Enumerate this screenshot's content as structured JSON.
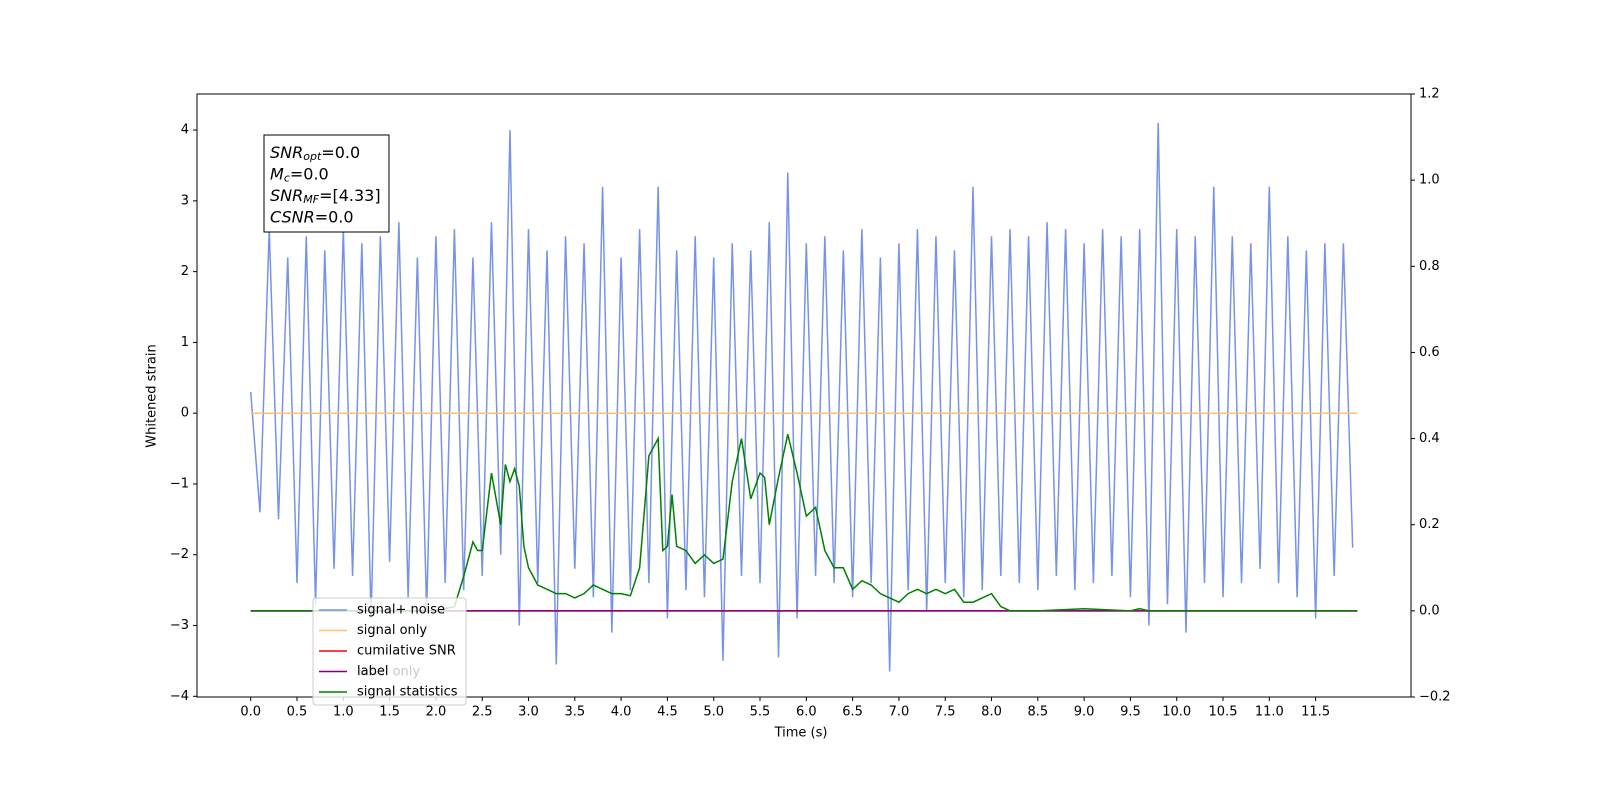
{
  "chart_data": {
    "type": "line",
    "xlabel": "Time (s)",
    "ylabel": "Whitened strain",
    "xlim": [
      -0.58,
      12.53
    ],
    "ylim": [
      -4.01,
      4.51
    ],
    "y2lim": [
      -0.2,
      1.2
    ],
    "xticks": [
      {
        "value": 0,
        "label": "0.0"
      },
      {
        "value": 0.5,
        "label": "0.5"
      },
      {
        "value": 1,
        "label": "1.0"
      },
      {
        "value": 1.5,
        "label": "1.5"
      },
      {
        "value": 2,
        "label": "2.0"
      },
      {
        "value": 2.5,
        "label": "2.5"
      },
      {
        "value": 3,
        "label": "3.0"
      },
      {
        "value": 3.5,
        "label": "3.5"
      },
      {
        "value": 4,
        "label": "4.0"
      },
      {
        "value": 4.5,
        "label": "4.5"
      },
      {
        "value": 5,
        "label": "5.0"
      },
      {
        "value": 5.5,
        "label": "5.5"
      },
      {
        "value": 6,
        "label": "6.0"
      },
      {
        "value": 6.5,
        "label": "6.5"
      },
      {
        "value": 7,
        "label": "7.0"
      },
      {
        "value": 7.5,
        "label": "7.5"
      },
      {
        "value": 8,
        "label": "8.0"
      },
      {
        "value": 8.5,
        "label": "8.5"
      },
      {
        "value": 9,
        "label": "9.0"
      },
      {
        "value": 9.5,
        "label": "9.5"
      },
      {
        "value": 10,
        "label": "10.0"
      },
      {
        "value": 10.5,
        "label": "10.5"
      },
      {
        "value": 11,
        "label": "11.0"
      },
      {
        "value": 11.5,
        "label": "11.5"
      }
    ],
    "yticks": [
      {
        "value": -4,
        "label": "−4"
      },
      {
        "value": -3,
        "label": "−3"
      },
      {
        "value": -2,
        "label": "−2"
      },
      {
        "value": -1,
        "label": "−1"
      },
      0,
      1,
      2,
      3,
      4
    ],
    "y2ticks": [
      {
        "value": -0.2,
        "label": "−0.2"
      },
      {
        "value": 0,
        "label": "0.0"
      },
      {
        "value": 0.2,
        "label": "0.2"
      },
      {
        "value": 0.4,
        "label": "0.4"
      },
      {
        "value": 0.6,
        "label": "0.6"
      },
      {
        "value": 0.8,
        "label": "0.8"
      },
      {
        "value": 1.0,
        "label": "1.0"
      },
      {
        "value": 1.2,
        "label": "1.2"
      }
    ],
    "legend": "lower left",
    "legend_behind_text": "label only",
    "textbox": [
      {
        "base": "SNR",
        "sub": "opt",
        "value": "=0.0"
      },
      {
        "base": "M",
        "sub": "c",
        "value": "=0.0"
      },
      {
        "base": "SNR",
        "sub": "MF",
        "value": "=[4.33]"
      },
      {
        "base": "CSNR",
        "value": "=0.0"
      }
    ],
    "series": [
      {
        "name": "signal+ noise",
        "color": "#7893e6",
        "x": [
          0,
          0.1,
          0.2,
          0.3,
          0.4,
          0.5,
          0.6,
          0.7,
          0.8,
          0.9,
          1,
          1.1,
          1.2,
          1.3,
          1.4,
          1.5,
          1.6,
          1.7,
          1.8,
          1.9,
          2,
          2.1,
          2.2,
          2.3,
          2.4,
          2.5,
          2.6,
          2.7,
          2.8,
          2.9,
          3,
          3.1,
          3.2,
          3.3,
          3.4,
          3.5,
          3.6,
          3.7,
          3.8,
          3.9,
          4,
          4.1,
          4.2,
          4.3,
          4.4,
          4.5,
          4.6,
          4.7,
          4.8,
          4.9,
          5,
          5.1,
          5.2,
          5.3,
          5.4,
          5.5,
          5.6,
          5.7,
          5.8,
          5.9,
          6,
          6.1,
          6.2,
          6.3,
          6.4,
          6.5,
          6.6,
          6.7,
          6.8,
          6.9,
          7,
          7.1,
          7.2,
          7.3,
          7.4,
          7.5,
          7.6,
          7.7,
          7.8,
          7.9,
          8,
          8.1,
          8.2,
          8.3,
          8.4,
          8.5,
          8.6,
          8.7,
          8.8,
          8.9,
          9,
          9.1,
          9.2,
          9.3,
          9.4,
          9.5,
          9.6,
          9.7,
          9.8,
          9.9,
          10,
          10.1,
          10.2,
          10.3,
          10.4,
          10.5,
          10.6,
          10.7,
          10.8,
          10.9,
          11,
          11.1,
          11.2,
          11.3,
          11.4,
          11.5,
          11.6,
          11.7,
          11.8,
          11.9
        ],
        "values": [
          0.3,
          -1.4,
          2.6,
          -1.5,
          2.2,
          -2.4,
          2.5,
          -2.7,
          2.3,
          -2.2,
          2.6,
          -2.3,
          2.4,
          -2.9,
          2.5,
          -2.1,
          2.7,
          -2.6,
          2.2,
          -2.8,
          2.5,
          -2.4,
          2.6,
          -2.5,
          2.2,
          -2.3,
          2.7,
          -2.0,
          4.0,
          -3.0,
          2.6,
          -2.4,
          2.3,
          -3.55,
          2.5,
          -2.2,
          2.4,
          -2.6,
          3.2,
          -3.1,
          2.2,
          -2.5,
          2.6,
          -2.4,
          3.2,
          -2.9,
          2.3,
          -2.5,
          2.5,
          -2.6,
          2.2,
          -3.5,
          2.4,
          -2.3,
          2.3,
          -2.4,
          2.7,
          -3.45,
          3.4,
          -2.9,
          2.4,
          -2.3,
          2.5,
          -2.4,
          2.3,
          -2.6,
          2.6,
          -2.4,
          2.2,
          -3.65,
          2.4,
          -2.5,
          2.6,
          -2.8,
          2.5,
          -2.4,
          2.3,
          -2.6,
          3.2,
          -2.5,
          2.5,
          -2.3,
          2.6,
          -2.4,
          2.5,
          -2.5,
          2.7,
          -2.3,
          2.6,
          -2.5,
          2.4,
          -2.4,
          2.6,
          -2.3,
          2.5,
          -2.6,
          2.6,
          -3.0,
          4.1,
          -2.7,
          2.6,
          -3.1,
          2.5,
          -2.4,
          3.2,
          -2.6,
          2.5,
          -2.4,
          2.4,
          -2.2,
          3.2,
          -2.4,
          2.5,
          -2.6,
          2.3,
          -2.9,
          2.4,
          -2.3,
          2.4,
          -1.9
        ]
      },
      {
        "name": "signal only",
        "color": "#ffc070",
        "x": [
          0,
          11.95
        ],
        "values": [
          0,
          0
        ]
      },
      {
        "name": "cumilative SNR",
        "color": "#ff0000",
        "axis": "y2",
        "x": [
          0,
          11.95
        ],
        "values": [
          0,
          0
        ]
      },
      {
        "name": "label",
        "color": "#800080",
        "axis": "y2",
        "x": [
          0,
          11.95
        ],
        "values": [
          0,
          0
        ]
      },
      {
        "name": "signal statistics",
        "color": "#008000",
        "axis": "y2",
        "x": [
          0,
          0.5,
          1.0,
          1.5,
          2.0,
          2.2,
          2.3,
          2.4,
          2.45,
          2.5,
          2.6,
          2.7,
          2.75,
          2.8,
          2.85,
          2.9,
          2.95,
          3.0,
          3.1,
          3.2,
          3.3,
          3.4,
          3.5,
          3.6,
          3.7,
          3.8,
          3.9,
          4.0,
          4.1,
          4.2,
          4.3,
          4.4,
          4.45,
          4.5,
          4.55,
          4.6,
          4.7,
          4.8,
          4.9,
          5.0,
          5.1,
          5.2,
          5.3,
          5.4,
          5.5,
          5.55,
          5.6,
          5.7,
          5.8,
          5.9,
          6.0,
          6.1,
          6.2,
          6.3,
          6.4,
          6.5,
          6.6,
          6.7,
          6.8,
          6.9,
          7.0,
          7.1,
          7.2,
          7.3,
          7.4,
          7.5,
          7.6,
          7.7,
          7.8,
          7.9,
          8.0,
          8.1,
          8.2,
          8.5,
          9.0,
          9.5,
          9.6,
          9.7,
          10.0,
          11.95
        ],
        "values": [
          0,
          0,
          0,
          0,
          0,
          0.01,
          0.08,
          0.16,
          0.14,
          0.14,
          0.32,
          0.2,
          0.34,
          0.3,
          0.33,
          0.29,
          0.15,
          0.1,
          0.06,
          0.05,
          0.04,
          0.04,
          0.03,
          0.04,
          0.06,
          0.05,
          0.04,
          0.04,
          0.035,
          0.1,
          0.36,
          0.4,
          0.14,
          0.15,
          0.27,
          0.15,
          0.14,
          0.11,
          0.13,
          0.11,
          0.12,
          0.3,
          0.4,
          0.26,
          0.32,
          0.31,
          0.2,
          0.31,
          0.41,
          0.32,
          0.22,
          0.24,
          0.14,
          0.1,
          0.1,
          0.05,
          0.07,
          0.06,
          0.04,
          0.03,
          0.02,
          0.04,
          0.05,
          0.04,
          0.05,
          0.04,
          0.05,
          0.02,
          0.02,
          0.03,
          0.04,
          0.01,
          0,
          0,
          0.005,
          0,
          0.005,
          0,
          0,
          0
        ]
      }
    ]
  }
}
